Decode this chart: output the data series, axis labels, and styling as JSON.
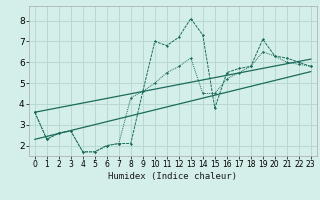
{
  "xlabel": "Humidex (Indice chaleur)",
  "bg_color": "#d4eeea",
  "grid_color": "#b8d8d2",
  "line_color": "#1a6b5a",
  "xlim": [
    -0.5,
    23.5
  ],
  "ylim": [
    1.5,
    8.7
  ],
  "xticks": [
    0,
    1,
    2,
    3,
    4,
    5,
    6,
    7,
    8,
    9,
    10,
    11,
    12,
    13,
    14,
    15,
    16,
    17,
    18,
    19,
    20,
    21,
    22,
    23
  ],
  "yticks": [
    2,
    3,
    4,
    5,
    6,
    7,
    8
  ],
  "series1_x": [
    0,
    1,
    2,
    3,
    4,
    5,
    6,
    7,
    8,
    9,
    10,
    11,
    12,
    13,
    14,
    15,
    16,
    17,
    18,
    19,
    20,
    21,
    22,
    23
  ],
  "series1_y": [
    3.6,
    2.3,
    2.6,
    2.7,
    1.7,
    1.7,
    2.0,
    2.1,
    2.1,
    4.6,
    7.0,
    6.8,
    7.2,
    8.1,
    7.3,
    3.8,
    5.5,
    5.7,
    5.8,
    7.1,
    6.3,
    6.2,
    6.0,
    5.8
  ],
  "series2_x": [
    0,
    1,
    2,
    3,
    4,
    5,
    6,
    7,
    8,
    9,
    10,
    11,
    12,
    13,
    14,
    15,
    16,
    17,
    18,
    19,
    20,
    21,
    22,
    23
  ],
  "series2_y": [
    3.6,
    2.3,
    2.6,
    2.7,
    1.7,
    1.7,
    2.0,
    2.1,
    4.3,
    4.6,
    5.0,
    5.5,
    5.8,
    6.2,
    4.5,
    4.5,
    5.2,
    5.5,
    5.8,
    6.5,
    6.3,
    6.0,
    5.9,
    5.8
  ],
  "series3_x": [
    0,
    23
  ],
  "series3_y": [
    3.6,
    6.15
  ],
  "series4_x": [
    0,
    23
  ],
  "series4_y": [
    2.3,
    5.55
  ]
}
